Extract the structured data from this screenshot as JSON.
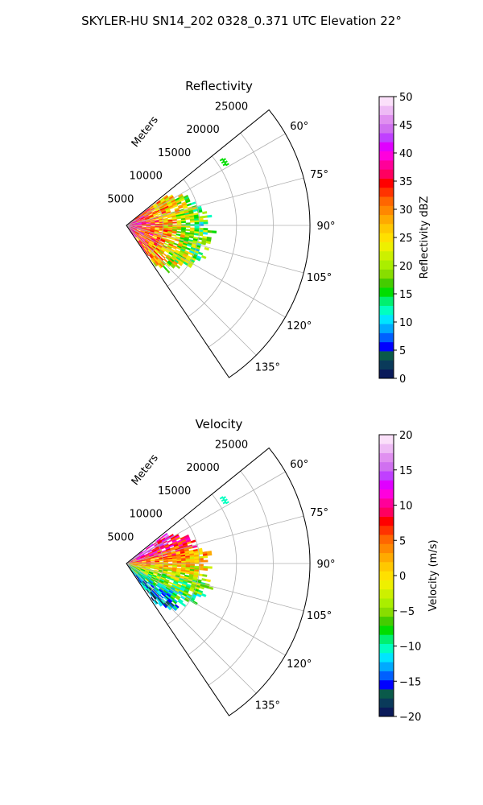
{
  "suptitle": "SKYLER-HU  SN14_202  0328_0.371 UTC Elevation 22°",
  "chart_data": [
    {
      "type": "polar_ppi",
      "title": "Reflectivity",
      "range_label": "Meters",
      "range_ticks": [
        5000,
        10000,
        15000,
        20000,
        25000
      ],
      "azimuth_ticks": [
        "60°",
        "75°",
        "90°",
        "105°",
        "120°",
        "135°"
      ],
      "azimuth_range_deg": [
        51,
        146
      ],
      "max_range_m": 25000,
      "data_max_range_m": 12000,
      "grid": true,
      "colorbar": {
        "label": "Reflectivity dBZ",
        "min": 0,
        "max": 50,
        "ticks": [
          "0",
          "5",
          "10",
          "15",
          "20",
          "25",
          "30",
          "35",
          "40",
          "45",
          "50"
        ],
        "palette": [
          "#0a1a5a",
          "#0a3a5a",
          "#0a5a4a",
          "#0000ff",
          "#0060ff",
          "#00aaff",
          "#00e5ff",
          "#00ffc0",
          "#00f070",
          "#00dd00",
          "#44cc00",
          "#88dd00",
          "#aaee00",
          "#ccf000",
          "#eef000",
          "#ffe000",
          "#ffc800",
          "#ffaa00",
          "#ff8800",
          "#ff6600",
          "#ff3300",
          "#ff0000",
          "#ff0060",
          "#ff0099",
          "#ff00dd",
          "#e000ff",
          "#c040ff",
          "#d070f0",
          "#e090f0",
          "#eebbf5",
          "#fbe0fa"
        ]
      }
    },
    {
      "type": "polar_ppi",
      "title": "Velocity",
      "range_label": "Meters",
      "range_ticks": [
        5000,
        10000,
        15000,
        20000,
        25000
      ],
      "azimuth_ticks": [
        "60°",
        "75°",
        "90°",
        "105°",
        "120°",
        "135°"
      ],
      "azimuth_range_deg": [
        51,
        146
      ],
      "max_range_m": 25000,
      "data_max_range_m": 12000,
      "grid": true,
      "colorbar": {
        "label": "Velocity (m/s)",
        "min": -20,
        "max": 20,
        "ticks": [
          "−20",
          "−15",
          "−10",
          "−5",
          "0",
          "5",
          "10",
          "15",
          "20"
        ],
        "palette": [
          "#0a1a5a",
          "#0a3a5a",
          "#0a5a4a",
          "#0000ff",
          "#0060ff",
          "#00aaff",
          "#00e5ff",
          "#00ffc0",
          "#00f070",
          "#00dd00",
          "#44cc00",
          "#88dd00",
          "#aaee00",
          "#ccf000",
          "#eef000",
          "#ffe000",
          "#ffc800",
          "#ffaa00",
          "#ff8800",
          "#ff6600",
          "#ff3300",
          "#ff0000",
          "#ff0060",
          "#ff0099",
          "#ff00dd",
          "#e000ff",
          "#c040ff",
          "#d070f0",
          "#e090f0",
          "#eebbf5",
          "#fbe0fa"
        ]
      }
    }
  ]
}
